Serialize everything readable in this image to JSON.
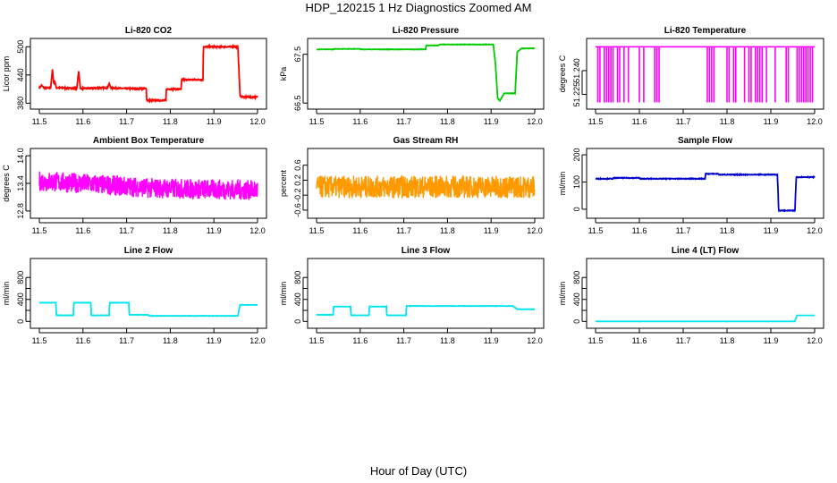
{
  "figure": {
    "title": "HDP_120215  1 Hz Diagnostics Zoomed AM",
    "xlabel": "Hour of Day (UTC)"
  },
  "chart_data": [
    {
      "type": "line",
      "title": "Li-820 CO2",
      "ylabel": "Licor ppm",
      "color": "#ff0000",
      "style": "step",
      "noise": 1.5,
      "spikes": [
        [
          11.53,
          412,
          452
        ],
        [
          11.59,
          412,
          448
        ],
        [
          11.535,
          412,
          428
        ],
        [
          11.66,
          412,
          422
        ]
      ],
      "xlim": [
        11.5,
        12.0
      ],
      "ylim": [
        375,
        510
      ],
      "xticks": [
        11.5,
        11.6,
        11.7,
        11.8,
        11.9,
        12.0
      ],
      "xtick_labels": [
        "11.5",
        "11.6",
        "11.7",
        "11.8",
        "11.9",
        "12.0"
      ],
      "yticks": [
        380,
        440,
        500
      ],
      "ytick_labels": [
        "380",
        "440",
        "500"
      ],
      "series": [
        {
          "x": [
            11.5,
            11.505,
            11.51,
            11.52,
            11.54,
            11.6,
            11.65,
            11.7,
            11.745,
            11.746,
            11.79,
            11.791,
            11.825,
            11.826,
            11.875,
            11.876,
            11.955,
            11.96,
            11.97,
            12.0
          ],
          "y": [
            412,
            418,
            413,
            412,
            413,
            411,
            413,
            411,
            411,
            386,
            386,
            410,
            410,
            430,
            430,
            500,
            500,
            395,
            393,
            393
          ]
        }
      ]
    },
    {
      "type": "line",
      "title": "Li-820 Pressure",
      "ylabel": "kPa",
      "color": "#00cc00",
      "style": "step",
      "noise": 0.004,
      "xlim": [
        11.5,
        12.0
      ],
      "ylim": [
        66.45,
        67.75
      ],
      "xticks": [
        11.5,
        11.6,
        11.7,
        11.8,
        11.9,
        12.0
      ],
      "xtick_labels": [
        "11.5",
        "11.6",
        "11.7",
        "11.8",
        "11.9",
        "12.0"
      ],
      "yticks": [
        66.5,
        67.5
      ],
      "ytick_labels": [
        "66.5",
        "67.5"
      ],
      "series": [
        {
          "x": [
            11.5,
            11.54,
            11.541,
            11.6,
            11.601,
            11.75,
            11.751,
            11.78,
            11.781,
            11.905,
            11.91,
            11.915,
            11.92,
            11.93,
            11.955,
            11.96,
            11.97,
            12.0
          ],
          "y": [
            67.6,
            67.6,
            67.61,
            67.61,
            67.6,
            67.6,
            67.68,
            67.68,
            67.7,
            67.7,
            67.3,
            66.6,
            66.55,
            66.7,
            66.7,
            67.55,
            67.62,
            67.62
          ]
        }
      ]
    },
    {
      "type": "line",
      "title": "Li-820 Temperature",
      "ylabel": "degrees C",
      "color": "#ff00ff",
      "style": "dropouts",
      "noise": 0,
      "base": 51.255,
      "low": 51.22,
      "dropouts": [
        11.505,
        11.51,
        11.52,
        11.525,
        11.53,
        11.535,
        11.54,
        11.55,
        11.555,
        11.565,
        11.575,
        11.6,
        11.61,
        11.635,
        11.64,
        11.645,
        11.755,
        11.76,
        11.765,
        11.77,
        11.8,
        11.805,
        11.815,
        11.82,
        11.84,
        11.85,
        11.855,
        11.865,
        11.87,
        11.875,
        11.88,
        11.89,
        11.91,
        11.935,
        11.94,
        11.96,
        11.965,
        11.97,
        11.975,
        11.98,
        11.985,
        11.99,
        11.995
      ],
      "xlim": [
        11.5,
        12.0
      ],
      "ylim": [
        51.218,
        51.258
      ],
      "xticks": [
        11.5,
        11.6,
        11.7,
        11.8,
        11.9,
        12.0
      ],
      "xtick_labels": [
        "11.5",
        "11.6",
        "11.7",
        "11.8",
        "11.9",
        "12.0"
      ],
      "yticks": [
        51.225,
        51.24
      ],
      "ytick_labels": [
        "51.225",
        "51.240"
      ],
      "series": [
        {
          "x": [
            11.5,
            12.0
          ],
          "y": [
            51.255,
            51.255
          ]
        }
      ]
    },
    {
      "type": "line",
      "title": "Ambient Box Temperature",
      "ylabel": "degrees C",
      "color": "#ff00ff",
      "style": "noise",
      "noise": 0.22,
      "xlim": [
        11.5,
        12.0
      ],
      "ylim": [
        12.72,
        14.08
      ],
      "xticks": [
        11.5,
        11.6,
        11.7,
        11.8,
        11.9,
        12.0
      ],
      "xtick_labels": [
        "11.5",
        "11.6",
        "11.7",
        "11.8",
        "11.9",
        "12.0"
      ],
      "yticks": [
        12.8,
        13.4,
        14.0
      ],
      "ytick_labels": [
        "12.8",
        "13.4",
        "14.0"
      ],
      "series": [
        {
          "x": [
            11.5,
            11.6,
            11.75,
            12.0
          ],
          "y": [
            13.45,
            13.4,
            13.3,
            13.25
          ]
        }
      ]
    },
    {
      "type": "line",
      "title": "Gas Stream RH",
      "ylabel": "percent",
      "color": "#ff9900",
      "style": "noise",
      "noise": 0.3,
      "xlim": [
        11.5,
        12.0
      ],
      "ylim": [
        -0.72,
        0.95
      ],
      "xticks": [
        11.5,
        11.6,
        11.7,
        11.8,
        11.9,
        12.0
      ],
      "xtick_labels": [
        "11.5",
        "11.6",
        "11.7",
        "11.8",
        "11.9",
        "12.0"
      ],
      "yticks": [
        -0.6,
        -0.2,
        0.2,
        0.6
      ],
      "ytick_labels": [
        "-0.6",
        "-0.2",
        "0.2",
        "0.6"
      ],
      "series": [
        {
          "x": [
            11.5,
            12.0
          ],
          "y": [
            0.02,
            0.02
          ]
        }
      ]
    },
    {
      "type": "line",
      "title": "Sample Flow",
      "ylabel": "ml/min",
      "color": "#0000cc",
      "style": "step",
      "noise": 1.2,
      "xlim": [
        11.5,
        12.0
      ],
      "ylim": [
        -20,
        210
      ],
      "xticks": [
        11.5,
        11.6,
        11.7,
        11.8,
        11.9,
        12.0
      ],
      "xtick_labels": [
        "11.5",
        "11.6",
        "11.7",
        "11.8",
        "11.9",
        "12.0"
      ],
      "yticks": [
        0,
        100,
        200
      ],
      "ytick_labels": [
        "0",
        "100",
        "200"
      ],
      "series": [
        {
          "x": [
            11.5,
            11.54,
            11.541,
            11.6,
            11.601,
            11.75,
            11.751,
            11.78,
            11.781,
            11.915,
            11.918,
            11.955,
            11.958,
            12.0
          ],
          "y": [
            112,
            112,
            115,
            115,
            112,
            112,
            130,
            130,
            127,
            127,
            -5,
            -5,
            118,
            118
          ]
        }
      ]
    },
    {
      "type": "line",
      "title": "Line 2 Flow",
      "ylabel": "ml/min",
      "color": "#00e5ee",
      "style": "step",
      "noise": 3,
      "xlim": [
        11.5,
        12.0
      ],
      "ylim": [
        -60,
        1080
      ],
      "xticks": [
        11.5,
        11.6,
        11.7,
        11.8,
        11.9,
        12.0
      ],
      "xtick_labels": [
        "11.5",
        "11.6",
        "11.7",
        "11.8",
        "11.9",
        "12.0"
      ],
      "yticks": [
        0,
        200,
        400,
        600,
        800
      ],
      "ytick_labels": [
        "0",
        "400",
        "800"
      ],
      "yticks_labeled": [
        0,
        400,
        800
      ],
      "series": [
        {
          "x": [
            11.5,
            11.538,
            11.539,
            11.578,
            11.579,
            11.618,
            11.619,
            11.66,
            11.661,
            11.705,
            11.706,
            11.75,
            11.751,
            11.955,
            11.96,
            12.0
          ],
          "y": [
            340,
            340,
            110,
            110,
            340,
            340,
            110,
            110,
            340,
            340,
            120,
            120,
            100,
            100,
            300,
            300
          ]
        }
      ]
    },
    {
      "type": "line",
      "title": "Line 3 Flow",
      "ylabel": "ml/min",
      "color": "#00e5ee",
      "style": "step",
      "noise": 3,
      "xlim": [
        11.5,
        12.0
      ],
      "ylim": [
        -60,
        1080
      ],
      "xticks": [
        11.5,
        11.6,
        11.7,
        11.8,
        11.9,
        12.0
      ],
      "xtick_labels": [
        "11.5",
        "11.6",
        "11.7",
        "11.8",
        "11.9",
        "12.0"
      ],
      "yticks": [
        0,
        200,
        400,
        600,
        800
      ],
      "ytick_labels": [
        "0",
        "400",
        "800"
      ],
      "yticks_labeled": [
        0,
        400,
        800
      ],
      "series": [
        {
          "x": [
            11.5,
            11.538,
            11.539,
            11.578,
            11.579,
            11.62,
            11.621,
            11.66,
            11.661,
            11.705,
            11.706,
            11.95,
            11.96,
            12.0
          ],
          "y": [
            120,
            120,
            270,
            270,
            110,
            110,
            270,
            270,
            110,
            110,
            280,
            280,
            220,
            220
          ]
        }
      ]
    },
    {
      "type": "line",
      "title": "Line 4 (LT) Flow",
      "ylabel": "ml/min",
      "color": "#00e5ee",
      "style": "step",
      "noise": 0,
      "xlim": [
        11.5,
        12.0
      ],
      "ylim": [
        -60,
        1080
      ],
      "xticks": [
        11.5,
        11.6,
        11.7,
        11.8,
        11.9,
        12.0
      ],
      "xtick_labels": [
        "11.5",
        "11.6",
        "11.7",
        "11.8",
        "11.9",
        "12.0"
      ],
      "yticks": [
        0,
        200,
        400,
        600,
        800
      ],
      "ytick_labels": [
        "0",
        "400",
        "800"
      ],
      "yticks_labeled": [
        0,
        400,
        800
      ],
      "series": [
        {
          "x": [
            11.5,
            11.955,
            11.96,
            12.0
          ],
          "y": [
            0,
            0,
            110,
            110
          ]
        }
      ]
    }
  ]
}
